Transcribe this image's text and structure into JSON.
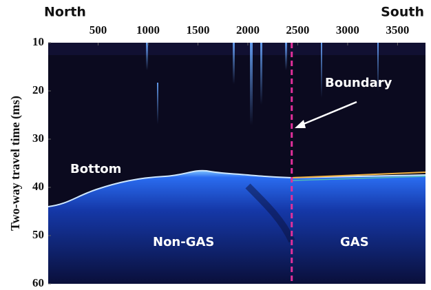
{
  "chart_data": {
    "type": "image",
    "y_label": "Two-way travel time (ms)",
    "left_label": "North",
    "right_label": "South",
    "xlim": [
      0,
      3780
    ],
    "xticks": [
      500,
      1000,
      1500,
      2000,
      2500,
      3000,
      3500
    ],
    "ylim": [
      60,
      10
    ],
    "yticks": [
      10,
      20,
      30,
      40,
      50,
      60
    ],
    "boundary_x": 2440,
    "boundary_color": "#e0309a",
    "annotations": {
      "boundary": "Boundary",
      "bottom": "Bottom",
      "left_region": "Non-GAS",
      "right_region": "GAS"
    }
  }
}
